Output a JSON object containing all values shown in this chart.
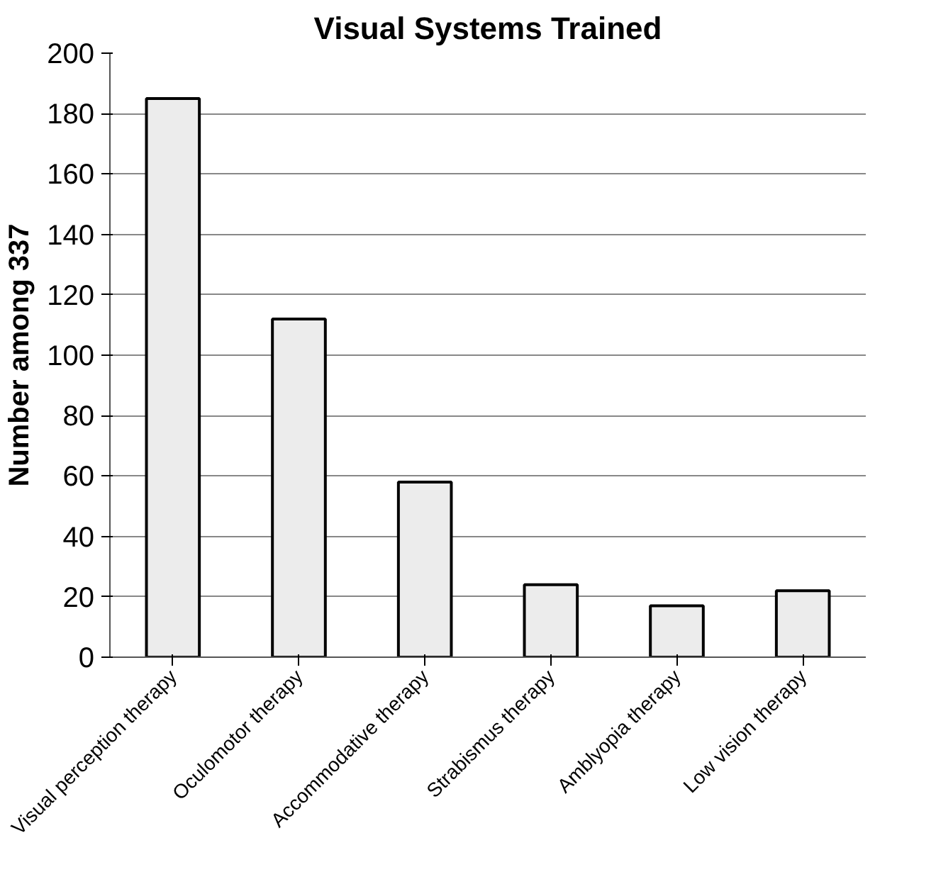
{
  "chart_data": {
    "type": "bar",
    "title": "Visual Systems Trained",
    "ylabel": "Number among 337",
    "categories": [
      "Visual perception therapy",
      "Oculomotor therapy",
      "Accommodative therapy",
      "Strabismus therapy",
      "Amblyopia therapy",
      "Low vision therapy"
    ],
    "values": [
      185,
      112,
      58,
      24,
      17,
      22
    ],
    "color": "#ececec",
    "ylim": [
      0,
      200
    ],
    "yticks": [
      0,
      20,
      40,
      60,
      80,
      100,
      120,
      140,
      160,
      180,
      200
    ],
    "grid": "y"
  }
}
